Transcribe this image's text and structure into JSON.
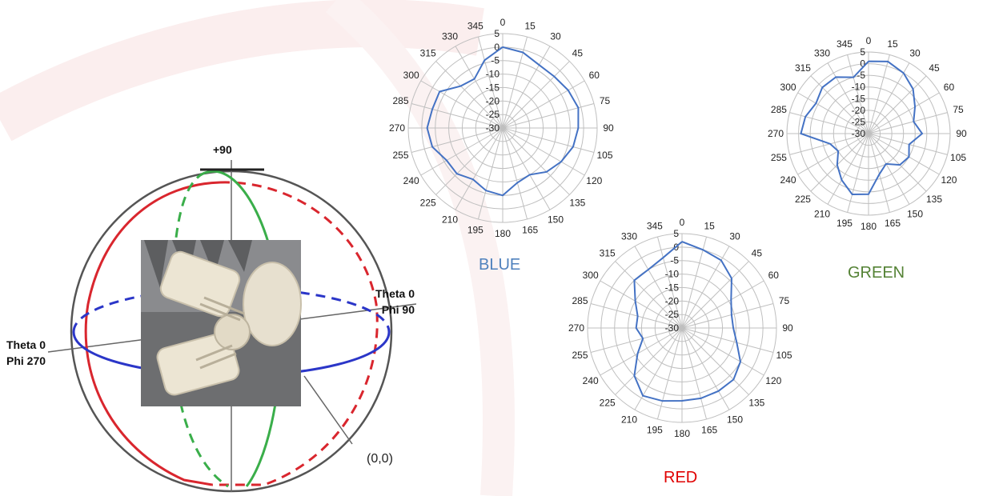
{
  "sphere": {
    "top_label": "+90",
    "right_label_line1": "Theta 0",
    "right_label_line2": "Phi 90",
    "left_label_line1": "Theta 0",
    "left_label_line2": "Phi 270",
    "origin_label": "(0,0)",
    "colors": {
      "red": "#d9262e",
      "blue": "#2b36c8",
      "green": "#3aae4a",
      "outline": "#333333"
    }
  },
  "chart_data": [
    {
      "type": "polar-line",
      "title": "BLUE",
      "title_color": "#4f81bd",
      "angle_labels": [
        "0",
        "15",
        "30",
        "45",
        "60",
        "75",
        "90",
        "105",
        "120",
        "135",
        "150",
        "165",
        "180",
        "195",
        "210",
        "225",
        "240",
        "255",
        "270",
        "285",
        "300",
        "315",
        "330",
        "345"
      ],
      "radial_labels": [
        "5",
        "0",
        "-5",
        "-10",
        "-15",
        "-20",
        "-25",
        "-30"
      ],
      "rlim": [
        -30,
        5
      ],
      "angles": [
        0,
        15,
        30,
        45,
        60,
        75,
        90,
        105,
        120,
        135,
        150,
        165,
        180,
        195,
        210,
        225,
        240,
        255,
        270,
        285,
        300,
        315,
        330,
        345
      ],
      "values": [
        0,
        -1,
        -3,
        -3,
        -2,
        -1,
        -2,
        -3,
        -5,
        -7,
        -10,
        -9,
        -5,
        -6,
        -8,
        -6,
        -6,
        -3,
        -2,
        -3,
        -3,
        -8,
        -9,
        -4
      ],
      "series_color": "#4472c4"
    },
    {
      "type": "polar-line",
      "title": "GREEN",
      "title_color": "#548235",
      "angle_labels": [
        "0",
        "15",
        "30",
        "45",
        "60",
        "75",
        "90",
        "105",
        "120",
        "135",
        "150",
        "165",
        "180",
        "195",
        "210",
        "225",
        "240",
        "255",
        "270",
        "285",
        "300",
        "315",
        "330",
        "345"
      ],
      "radial_labels": [
        "5",
        "0",
        "-5",
        "-10",
        "-15",
        "-20",
        "-25",
        "-30"
      ],
      "rlim": [
        -30,
        5
      ],
      "angles": [
        0,
        15,
        30,
        45,
        60,
        75,
        90,
        105,
        120,
        135,
        150,
        165,
        180,
        195,
        210,
        225,
        240,
        255,
        270,
        285,
        300,
        315,
        330,
        345
      ],
      "values": [
        1,
        2,
        0,
        -3,
        -7,
        -10,
        -7,
        -12,
        -10,
        -11,
        -15,
        -12,
        -4,
        -3,
        -7,
        -11,
        -15,
        -13,
        -1,
        -2,
        -4,
        -2,
        -2,
        -5
      ],
      "series_color": "#4472c4"
    },
    {
      "type": "polar-line",
      "title": "RED",
      "title_color": "#e00000",
      "angle_labels": [
        "0",
        "15",
        "30",
        "45",
        "60",
        "75",
        "90",
        "105",
        "120",
        "135",
        "150",
        "165",
        "180",
        "195",
        "210",
        "225",
        "240",
        "255",
        "270",
        "285",
        "300",
        "315",
        "330",
        "345"
      ],
      "radial_labels": [
        "5",
        "0",
        "-5",
        "-10",
        "-15",
        "-20",
        "-25",
        "-30"
      ],
      "rlim": [
        -30,
        5
      ],
      "angles": [
        0,
        15,
        30,
        45,
        60,
        75,
        90,
        105,
        120,
        135,
        150,
        165,
        180,
        195,
        210,
        225,
        240,
        255,
        270,
        285,
        300,
        315,
        330,
        345
      ],
      "values": [
        2,
        0,
        -1,
        -4,
        -9,
        -11,
        -11,
        -9,
        -5,
        -3,
        -3,
        -3,
        -3,
        -2,
        -1,
        -5,
        -11,
        -15,
        -13,
        -13,
        -10,
        -5,
        -5,
        -3
      ],
      "series_color": "#4472c4"
    }
  ]
}
